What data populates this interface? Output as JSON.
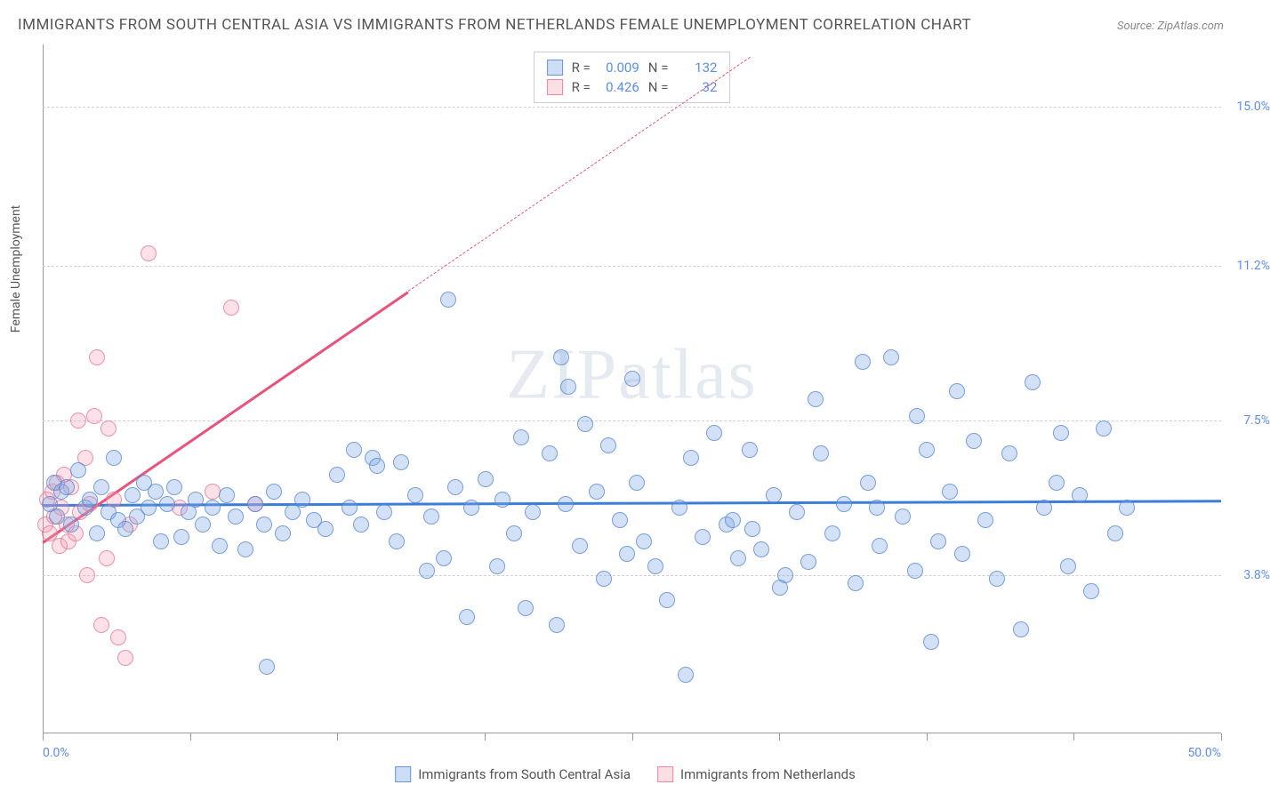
{
  "title": "IMMIGRANTS FROM SOUTH CENTRAL ASIA VS IMMIGRANTS FROM NETHERLANDS FEMALE UNEMPLOYMENT CORRELATION CHART",
  "source": "Source: ZipAtlas.com",
  "watermark": "ZIPatlas",
  "y_axis_label": "Female Unemployment",
  "colors": {
    "blue_fill": "rgba(130,170,230,0.35)",
    "blue_stroke": "rgba(80,130,210,0.7)",
    "pink_fill": "rgba(245,160,180,0.3)",
    "pink_stroke": "rgba(235,110,140,0.7)",
    "blue_line": "#3b7dd8",
    "pink_line": "#e8537a",
    "tick_text": "#5b8def",
    "grid": "#d0d0d0"
  },
  "xlim": [
    0,
    50
  ],
  "ylim": [
    0,
    16.5
  ],
  "y_ticks": [
    {
      "value": 3.8,
      "label": "3.8%"
    },
    {
      "value": 7.5,
      "label": "7.5%"
    },
    {
      "value": 11.2,
      "label": "11.2%"
    },
    {
      "value": 15.0,
      "label": "15.0%"
    }
  ],
  "x_ticks_minor": [
    0,
    6.25,
    12.5,
    18.75,
    25,
    31.25,
    37.5,
    43.75,
    50
  ],
  "x_tick_labels": [
    {
      "value": 0,
      "label": "0.0%"
    },
    {
      "value": 50,
      "label": "50.0%"
    }
  ],
  "stats": [
    {
      "color": "blue",
      "r": "0.009",
      "n": "132"
    },
    {
      "color": "pink",
      "r": "0.426",
      "n": "32"
    }
  ],
  "legend": [
    {
      "color": "blue",
      "label": "Immigrants from South Central Asia"
    },
    {
      "color": "pink",
      "label": "Immigrants from Netherlands"
    }
  ],
  "trend_lines": {
    "blue": {
      "x1": 0,
      "y1": 5.5,
      "x2": 50,
      "y2": 5.6
    },
    "pink_solid": {
      "x1": 0,
      "y1": 4.6,
      "x2": 15.5,
      "y2": 10.6
    },
    "pink_dash": {
      "x1": 15.5,
      "y1": 10.6,
      "x2": 30,
      "y2": 16.2
    }
  },
  "blue_points": [
    [
      0.3,
      5.5
    ],
    [
      0.5,
      6.0
    ],
    [
      0.6,
      5.2
    ],
    [
      0.8,
      5.8
    ],
    [
      1.0,
      5.9
    ],
    [
      1.2,
      5.0
    ],
    [
      1.5,
      6.3
    ],
    [
      1.8,
      5.4
    ],
    [
      2.0,
      5.6
    ],
    [
      2.3,
      4.8
    ],
    [
      2.5,
      5.9
    ],
    [
      2.8,
      5.3
    ],
    [
      3.0,
      6.6
    ],
    [
      3.2,
      5.1
    ],
    [
      3.5,
      4.9
    ],
    [
      3.8,
      5.7
    ],
    [
      4.0,
      5.2
    ],
    [
      4.3,
      6.0
    ],
    [
      4.5,
      5.4
    ],
    [
      4.8,
      5.8
    ],
    [
      5.0,
      4.6
    ],
    [
      5.3,
      5.5
    ],
    [
      5.6,
      5.9
    ],
    [
      5.9,
      4.7
    ],
    [
      6.2,
      5.3
    ],
    [
      6.5,
      5.6
    ],
    [
      6.8,
      5.0
    ],
    [
      7.2,
      5.4
    ],
    [
      7.5,
      4.5
    ],
    [
      7.8,
      5.7
    ],
    [
      8.2,
      5.2
    ],
    [
      8.6,
      4.4
    ],
    [
      9.0,
      5.5
    ],
    [
      9.4,
      5.0
    ],
    [
      9.5,
      1.6
    ],
    [
      9.8,
      5.8
    ],
    [
      10.2,
      4.8
    ],
    [
      10.6,
      5.3
    ],
    [
      11.0,
      5.6
    ],
    [
      11.5,
      5.1
    ],
    [
      12.0,
      4.9
    ],
    [
      12.5,
      6.2
    ],
    [
      13.0,
      5.4
    ],
    [
      13.2,
      6.8
    ],
    [
      13.5,
      5.0
    ],
    [
      14.0,
      6.6
    ],
    [
      14.2,
      6.4
    ],
    [
      14.5,
      5.3
    ],
    [
      15.0,
      4.6
    ],
    [
      15.2,
      6.5
    ],
    [
      15.8,
      5.7
    ],
    [
      16.3,
      3.9
    ],
    [
      16.5,
      5.2
    ],
    [
      17.0,
      4.2
    ],
    [
      17.2,
      10.4
    ],
    [
      17.5,
      5.9
    ],
    [
      18.0,
      2.8
    ],
    [
      18.2,
      5.4
    ],
    [
      18.8,
      6.1
    ],
    [
      19.3,
      4.0
    ],
    [
      19.5,
      5.6
    ],
    [
      20.0,
      4.8
    ],
    [
      20.3,
      7.1
    ],
    [
      20.5,
      3.0
    ],
    [
      20.8,
      5.3
    ],
    [
      21.5,
      6.7
    ],
    [
      21.8,
      2.6
    ],
    [
      22.0,
      9.0
    ],
    [
      22.2,
      5.5
    ],
    [
      22.3,
      8.3
    ],
    [
      22.8,
      4.5
    ],
    [
      23.0,
      7.4
    ],
    [
      23.5,
      5.8
    ],
    [
      23.8,
      3.7
    ],
    [
      24.0,
      6.9
    ],
    [
      24.5,
      5.1
    ],
    [
      24.8,
      4.3
    ],
    [
      25.0,
      8.5
    ],
    [
      25.2,
      6.0
    ],
    [
      25.5,
      4.6
    ],
    [
      26.0,
      4.0
    ],
    [
      26.5,
      3.2
    ],
    [
      27.0,
      5.4
    ],
    [
      27.3,
      1.4
    ],
    [
      27.5,
      6.6
    ],
    [
      28.0,
      4.7
    ],
    [
      28.5,
      7.2
    ],
    [
      29.0,
      5.0
    ],
    [
      29.3,
      5.1
    ],
    [
      29.5,
      4.2
    ],
    [
      30.0,
      6.8
    ],
    [
      30.1,
      4.9
    ],
    [
      30.5,
      4.4
    ],
    [
      31.0,
      5.7
    ],
    [
      31.3,
      3.5
    ],
    [
      31.5,
      3.8
    ],
    [
      32.0,
      5.3
    ],
    [
      32.5,
      4.1
    ],
    [
      32.8,
      8.0
    ],
    [
      33.0,
      6.7
    ],
    [
      33.5,
      4.8
    ],
    [
      34.0,
      5.5
    ],
    [
      34.5,
      3.6
    ],
    [
      34.8,
      8.9
    ],
    [
      35.0,
      6.0
    ],
    [
      35.4,
      5.4
    ],
    [
      35.5,
      4.5
    ],
    [
      36.0,
      9.0
    ],
    [
      36.5,
      5.2
    ],
    [
      37.0,
      3.9
    ],
    [
      37.1,
      7.6
    ],
    [
      37.5,
      6.8
    ],
    [
      37.7,
      2.2
    ],
    [
      38.0,
      4.6
    ],
    [
      38.5,
      5.8
    ],
    [
      38.8,
      8.2
    ],
    [
      39.0,
      4.3
    ],
    [
      39.5,
      7.0
    ],
    [
      40.0,
      5.1
    ],
    [
      40.5,
      3.7
    ],
    [
      41.0,
      6.7
    ],
    [
      41.5,
      2.5
    ],
    [
      42.0,
      8.4
    ],
    [
      42.5,
      5.4
    ],
    [
      43.0,
      6.0
    ],
    [
      43.2,
      7.2
    ],
    [
      43.5,
      4.0
    ],
    [
      44.0,
      5.7
    ],
    [
      44.5,
      3.4
    ],
    [
      45.0,
      7.3
    ],
    [
      45.5,
      4.8
    ],
    [
      46.0,
      5.4
    ]
  ],
  "pink_points": [
    [
      0.1,
      5.0
    ],
    [
      0.2,
      5.6
    ],
    [
      0.3,
      4.8
    ],
    [
      0.4,
      5.8
    ],
    [
      0.5,
      5.2
    ],
    [
      0.6,
      6.0
    ],
    [
      0.7,
      4.5
    ],
    [
      0.8,
      5.4
    ],
    [
      0.9,
      6.2
    ],
    [
      1.0,
      5.0
    ],
    [
      1.1,
      4.6
    ],
    [
      1.2,
      5.9
    ],
    [
      1.4,
      4.8
    ],
    [
      1.5,
      7.5
    ],
    [
      1.6,
      5.3
    ],
    [
      1.8,
      6.6
    ],
    [
      1.9,
      3.8
    ],
    [
      2.0,
      5.5
    ],
    [
      2.2,
      7.6
    ],
    [
      2.3,
      9.0
    ],
    [
      2.5,
      2.6
    ],
    [
      2.7,
      4.2
    ],
    [
      2.8,
      7.3
    ],
    [
      3.0,
      5.6
    ],
    [
      3.2,
      2.3
    ],
    [
      3.5,
      1.8
    ],
    [
      3.7,
      5.0
    ],
    [
      4.5,
      11.5
    ],
    [
      5.8,
      5.4
    ],
    [
      7.2,
      5.8
    ],
    [
      8.0,
      10.2
    ],
    [
      9.0,
      5.5
    ]
  ]
}
